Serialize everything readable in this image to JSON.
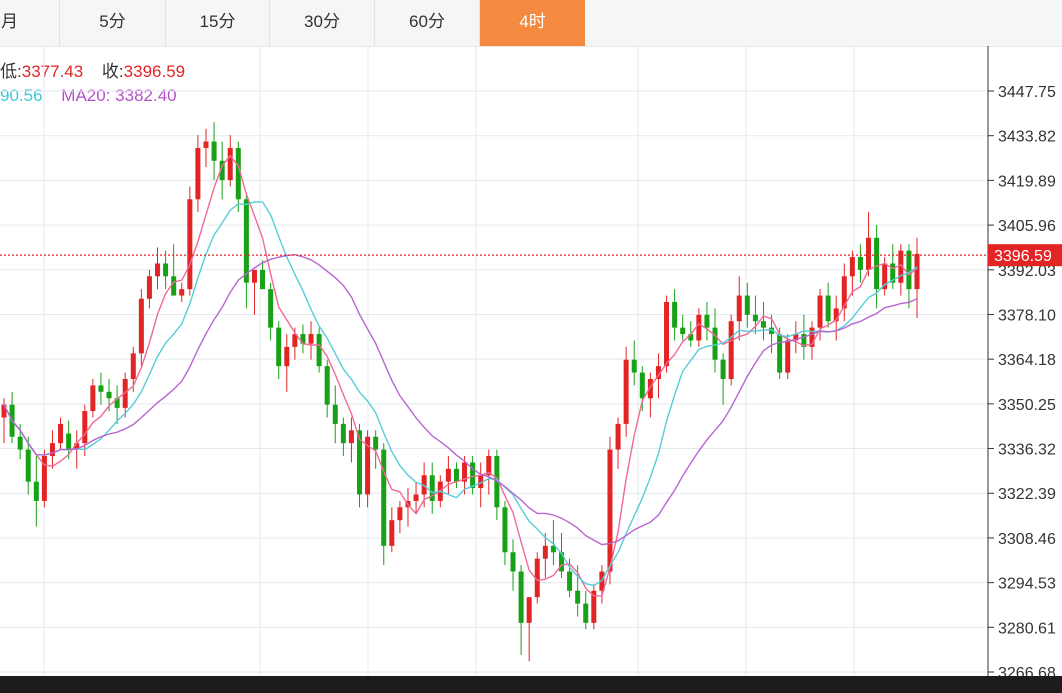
{
  "tabs": [
    {
      "label": "月",
      "active": false
    },
    {
      "label": "5分",
      "active": false
    },
    {
      "label": "15分",
      "active": false
    },
    {
      "label": "30分",
      "active": false
    },
    {
      "label": "60分",
      "active": false
    },
    {
      "label": "4时",
      "active": true
    }
  ],
  "info": {
    "low_label": "低:",
    "low_value": "3377.43",
    "close_label": "收:",
    "close_value": "3396.59",
    "ma10_value": "90.56",
    "ma20_label": "MA20:",
    "ma20_value": "3382.40"
  },
  "colors": {
    "up": "#e32424",
    "down": "#17a117",
    "ma5": "#f06a96",
    "ma10": "#56cdd9",
    "ma20": "#b865d1",
    "price_line": "#e32424",
    "tab_active": "#f38a3f",
    "grid": "#e3eaf2"
  },
  "chart_data": {
    "type": "candlestick",
    "ylim": [
      3266.68,
      3457.0
    ],
    "y_ticks": [
      "3447.75",
      "3433.82",
      "3419.89",
      "3405.96",
      "3392.03",
      "3378.10",
      "3364.18",
      "3350.25",
      "3336.32",
      "3322.39",
      "3308.46",
      "3294.53",
      "3280.61",
      "3266.68"
    ],
    "last_price_label": "3396.59",
    "last_price": 3396.59,
    "candles": [
      [
        3346,
        3352,
        3338,
        3350
      ],
      [
        3350,
        3354,
        3338,
        3340
      ],
      [
        3340,
        3344,
        3333,
        3336
      ],
      [
        3336,
        3340,
        3322,
        3326
      ],
      [
        3326,
        3334,
        3312,
        3320
      ],
      [
        3320,
        3336,
        3318,
        3334
      ],
      [
        3334,
        3342,
        3330,
        3338
      ],
      [
        3338,
        3346,
        3336,
        3344
      ],
      [
        3341,
        3345,
        3333,
        3336
      ],
      [
        3336,
        3342,
        3330,
        3338
      ],
      [
        3338,
        3350,
        3334,
        3348
      ],
      [
        3348,
        3358,
        3346,
        3356
      ],
      [
        3356,
        3360,
        3350,
        3354
      ],
      [
        3354,
        3358,
        3348,
        3352
      ],
      [
        3352,
        3356,
        3344,
        3349
      ],
      [
        3349,
        3360,
        3346,
        3358
      ],
      [
        3358,
        3368,
        3354,
        3366
      ],
      [
        3366,
        3386,
        3362,
        3383
      ],
      [
        3383,
        3392,
        3380,
        3390
      ],
      [
        3390,
        3399,
        3386,
        3394
      ],
      [
        3394,
        3398,
        3386,
        3390
      ],
      [
        3390,
        3400,
        3384,
        3384
      ],
      [
        3384,
        3388,
        3382,
        3386
      ],
      [
        3386,
        3418,
        3384,
        3414
      ],
      [
        3414,
        3434,
        3410,
        3430
      ],
      [
        3430,
        3436,
        3424,
        3432
      ],
      [
        3432,
        3438,
        3420,
        3426
      ],
      [
        3426,
        3432,
        3414,
        3420
      ],
      [
        3420,
        3434,
        3418,
        3430
      ],
      [
        3430,
        3432,
        3410,
        3414
      ],
      [
        3414,
        3416,
        3380,
        3388
      ],
      [
        3388,
        3392,
        3378,
        3392
      ],
      [
        3392,
        3395,
        3386,
        3386
      ],
      [
        3386,
        3388,
        3370,
        3374
      ],
      [
        3374,
        3376,
        3358,
        3362
      ],
      [
        3362,
        3372,
        3354,
        3368
      ],
      [
        3368,
        3374,
        3364,
        3372
      ],
      [
        3372,
        3375,
        3366,
        3369
      ],
      [
        3369,
        3376,
        3364,
        3372
      ],
      [
        3372,
        3374,
        3360,
        3362
      ],
      [
        3362,
        3364,
        3346,
        3350
      ],
      [
        3350,
        3356,
        3338,
        3344
      ],
      [
        3344,
        3346,
        3334,
        3338
      ],
      [
        3338,
        3346,
        3332,
        3342
      ],
      [
        3342,
        3344,
        3318,
        3322
      ],
      [
        3322,
        3342,
        3318,
        3340
      ],
      [
        3340,
        3342,
        3330,
        3336
      ],
      [
        3336,
        3338,
        3300,
        3306
      ],
      [
        3306,
        3318,
        3304,
        3314
      ],
      [
        3314,
        3320,
        3310,
        3318
      ],
      [
        3318,
        3324,
        3312,
        3320
      ],
      [
        3320,
        3326,
        3316,
        3322
      ],
      [
        3322,
        3332,
        3318,
        3328
      ],
      [
        3328,
        3332,
        3316,
        3320
      ],
      [
        3320,
        3328,
        3318,
        3326
      ],
      [
        3326,
        3334,
        3322,
        3330
      ],
      [
        3330,
        3332,
        3324,
        3326
      ],
      [
        3326,
        3334,
        3322,
        3332
      ],
      [
        3332,
        3334,
        3322,
        3324
      ],
      [
        3324,
        3332,
        3318,
        3328
      ],
      [
        3328,
        3336,
        3322,
        3334
      ],
      [
        3334,
        3336,
        3314,
        3318
      ],
      [
        3318,
        3320,
        3300,
        3304
      ],
      [
        3304,
        3308,
        3292,
        3298
      ],
      [
        3298,
        3300,
        3272,
        3282
      ],
      [
        3282,
        3290,
        3270,
        3290
      ],
      [
        3290,
        3304,
        3288,
        3302
      ],
      [
        3302,
        3310,
        3296,
        3306
      ],
      [
        3306,
        3314,
        3300,
        3304
      ],
      [
        3304,
        3310,
        3296,
        3298
      ],
      [
        3298,
        3302,
        3290,
        3292
      ],
      [
        3292,
        3300,
        3284,
        3288
      ],
      [
        3288,
        3292,
        3280,
        3282
      ],
      [
        3282,
        3294,
        3280,
        3292
      ],
      [
        3292,
        3300,
        3288,
        3298
      ],
      [
        3298,
        3340,
        3294,
        3336
      ],
      [
        3336,
        3346,
        3330,
        3344
      ],
      [
        3344,
        3368,
        3340,
        3364
      ],
      [
        3364,
        3370,
        3356,
        3360
      ],
      [
        3360,
        3362,
        3348,
        3352
      ],
      [
        3352,
        3360,
        3346,
        3358
      ],
      [
        3358,
        3366,
        3352,
        3362
      ],
      [
        3362,
        3384,
        3360,
        3382
      ],
      [
        3382,
        3386,
        3370,
        3374
      ],
      [
        3374,
        3378,
        3370,
        3372
      ],
      [
        3372,
        3376,
        3368,
        3370
      ],
      [
        3370,
        3380,
        3368,
        3378
      ],
      [
        3378,
        3382,
        3370,
        3374
      ],
      [
        3374,
        3380,
        3360,
        3364
      ],
      [
        3364,
        3366,
        3350,
        3358
      ],
      [
        3358,
        3378,
        3356,
        3376
      ],
      [
        3376,
        3390,
        3370,
        3384
      ],
      [
        3384,
        3388,
        3374,
        3378
      ],
      [
        3378,
        3384,
        3372,
        3376
      ],
      [
        3376,
        3382,
        3370,
        3374
      ],
      [
        3374,
        3378,
        3366,
        3372
      ],
      [
        3372,
        3374,
        3358,
        3360
      ],
      [
        3360,
        3372,
        3358,
        3370
      ],
      [
        3370,
        3376,
        3366,
        3372
      ],
      [
        3372,
        3378,
        3364,
        3368
      ],
      [
        3368,
        3376,
        3364,
        3374
      ],
      [
        3374,
        3386,
        3370,
        3384
      ],
      [
        3384,
        3388,
        3374,
        3376
      ],
      [
        3376,
        3384,
        3370,
        3380
      ],
      [
        3380,
        3394,
        3376,
        3390
      ],
      [
        3390,
        3398,
        3384,
        3396
      ],
      [
        3396,
        3400,
        3388,
        3392
      ],
      [
        3392,
        3410,
        3390,
        3402
      ],
      [
        3402,
        3406,
        3380,
        3386
      ],
      [
        3386,
        3396,
        3384,
        3394
      ],
      [
        3394,
        3400,
        3386,
        3388
      ],
      [
        3388,
        3400,
        3384,
        3398
      ],
      [
        3398,
        3400,
        3380,
        3386
      ],
      [
        3386,
        3402,
        3377,
        3397
      ]
    ]
  }
}
